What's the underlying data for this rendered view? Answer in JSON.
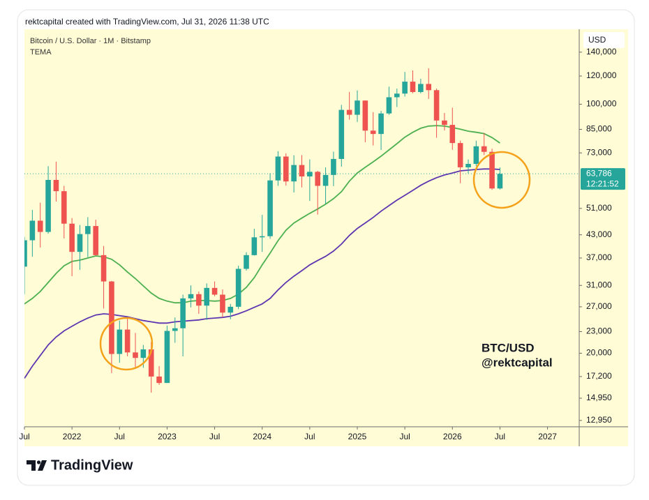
{
  "chart_data": {
    "type": "candlestick",
    "caption": "rektcapital created with TradingView.com, Jul 31, 2026 11:38 UTC",
    "title": "Bitcoin / U.S. Dollar · 1M · Bitstamp",
    "indicator": "TEMA",
    "currency": "USD",
    "annotations": [
      "BTC/USD",
      "@rektcapital"
    ],
    "branding": "TradingView",
    "log_scale": true,
    "grid": false,
    "up_color": "#26a69a",
    "down_color": "#ef5350",
    "x": [
      "2021-07",
      "2021-08",
      "2021-09",
      "2021-10",
      "2021-11",
      "2021-12",
      "2022-01",
      "2022-02",
      "2022-03",
      "2022-04",
      "2022-05",
      "2022-06",
      "2022-07",
      "2022-08",
      "2022-09",
      "2022-10",
      "2022-11",
      "2022-12",
      "2023-01",
      "2023-02",
      "2023-03",
      "2023-04",
      "2023-05",
      "2023-06",
      "2023-07",
      "2023-08",
      "2023-09",
      "2023-10",
      "2023-11",
      "2023-12",
      "2024-01",
      "2024-02",
      "2024-03",
      "2024-04",
      "2024-05",
      "2024-06",
      "2024-07",
      "2024-08",
      "2024-09",
      "2024-10",
      "2024-11",
      "2024-12",
      "2025-01",
      "2025-02",
      "2025-03",
      "2025-04",
      "2025-05",
      "2025-06",
      "2025-07",
      "2025-08",
      "2025-09",
      "2025-10",
      "2025-11",
      "2025-12",
      "2026-01",
      "2026-02",
      "2026-03",
      "2026-04",
      "2026-05",
      "2026-06",
      "2026-07"
    ],
    "open": [
      35000,
      41500,
      47100,
      43800,
      61300,
      57000,
      46200,
      38500,
      43200,
      45500,
      37700,
      31800,
      19900,
      23300,
      20100,
      19400,
      20500,
      17200,
      16500,
      23100,
      23500,
      28500,
      29300,
      27200,
      30500,
      29200,
      26000,
      27000,
      34500,
      37700,
      42300,
      42600,
      61100,
      71300,
      60700,
      67500,
      62700,
      64600,
      59000,
      63300,
      70200,
      96400,
      93400,
      102400,
      84300,
      82500,
      94200,
      104600,
      107100,
      115700,
      108200,
      114000,
      109500,
      90000,
      87500,
      77800,
      66500,
      68000,
      76200,
      73500,
      58000
    ],
    "high": [
      42400,
      50500,
      52900,
      67000,
      69000,
      59000,
      47900,
      45800,
      48200,
      47400,
      40000,
      31900,
      24700,
      25200,
      22800,
      21100,
      21500,
      18400,
      23900,
      25200,
      29200,
      31000,
      29800,
      31400,
      31800,
      30200,
      27500,
      35200,
      38400,
      44700,
      48900,
      64000,
      73800,
      72800,
      71900,
      72000,
      70000,
      65000,
      66500,
      73600,
      99600,
      108300,
      109300,
      102500,
      95000,
      95800,
      112000,
      110600,
      123200,
      124400,
      117900,
      126200,
      110600,
      94500,
      97800,
      79000,
      70000,
      79000,
      83000,
      75000,
      66500
    ],
    "low": [
      29300,
      37300,
      39600,
      43300,
      53300,
      42000,
      32900,
      34300,
      37200,
      37600,
      26700,
      17600,
      18800,
      19600,
      18200,
      18200,
      15500,
      16300,
      16500,
      21400,
      19600,
      26900,
      25800,
      24800,
      28900,
      25200,
      24900,
      26600,
      34100,
      37600,
      38500,
      41900,
      59000,
      59100,
      56500,
      58400,
      53500,
      49000,
      52500,
      58900,
      66800,
      90500,
      89200,
      78200,
      76600,
      74400,
      93400,
      98200,
      105100,
      107300,
      107300,
      103500,
      80500,
      84400,
      74500,
      60000,
      64000,
      67000,
      72000,
      57500,
      57600
    ],
    "close": [
      41500,
      47100,
      43800,
      61300,
      57000,
      46200,
      38500,
      43200,
      45500,
      37700,
      31800,
      19900,
      23300,
      20100,
      19400,
      20500,
      17200,
      16500,
      23100,
      23500,
      28500,
      29300,
      27200,
      30500,
      29200,
      26000,
      27000,
      34500,
      37700,
      42300,
      42600,
      61100,
      71300,
      60700,
      67500,
      62700,
      64600,
      59000,
      63300,
      70200,
      96400,
      93400,
      102400,
      84300,
      82500,
      94200,
      104600,
      107100,
      115700,
      108200,
      114000,
      109500,
      90000,
      87500,
      77800,
      66500,
      68000,
      76200,
      73500,
      58000,
      63786
    ],
    "indicators": [
      {
        "color": "#4caf50",
        "values": [
          27500,
          28500,
          29800,
          31600,
          33500,
          35200,
          36200,
          36500,
          37000,
          37500,
          37300,
          36700,
          35400,
          33800,
          32400,
          30900,
          29500,
          28500,
          28000,
          27700,
          27700,
          28000,
          28100,
          28100,
          28000,
          28100,
          28500,
          29300,
          30600,
          32600,
          35400,
          38200,
          41400,
          44300,
          46400,
          47900,
          49400,
          50800,
          52400,
          54300,
          56800,
          60800,
          64100,
          66500,
          68900,
          71500,
          74400,
          77500,
          80800,
          83400,
          85600,
          86800,
          87100,
          86800,
          86000,
          85100,
          84000,
          83400,
          82700,
          80600,
          77800
        ]
      },
      {
        "color": "#5e35b1",
        "values": [
          17000,
          18400,
          19700,
          21100,
          22200,
          23100,
          23800,
          24500,
          25100,
          25600,
          25800,
          25700,
          25500,
          25300,
          25000,
          24700,
          24500,
          24300,
          24300,
          24500,
          24600,
          24700,
          24800,
          25000,
          25100,
          25200,
          25400,
          25800,
          26300,
          26900,
          27500,
          28500,
          30100,
          31600,
          32900,
          34100,
          35400,
          36400,
          37400,
          38700,
          40500,
          42800,
          44800,
          46400,
          48100,
          50100,
          51900,
          53800,
          55500,
          57300,
          59200,
          60800,
          62200,
          63300,
          64100,
          65000,
          65300,
          65600,
          65800,
          65800,
          65600
        ]
      }
    ],
    "last_price": {
      "value": 63786,
      "label": "63,786"
    },
    "countdown": "12:21:52",
    "xlim": [
      "2021-07",
      "2027-05"
    ],
    "xticks": [
      {
        "value": "2021-07",
        "label": "Jul"
      },
      {
        "value": "2022-01",
        "label": "2022"
      },
      {
        "value": "2022-07",
        "label": "Jul"
      },
      {
        "value": "2023-01",
        "label": "2023"
      },
      {
        "value": "2023-07",
        "label": "Jul"
      },
      {
        "value": "2024-01",
        "label": "2024"
      },
      {
        "value": "2024-07",
        "label": "Jul"
      },
      {
        "value": "2025-01",
        "label": "2025"
      },
      {
        "value": "2025-07",
        "label": "Jul"
      },
      {
        "value": "2026-01",
        "label": "2026"
      },
      {
        "value": "2026-07",
        "label": "Jul"
      },
      {
        "value": "2027-01",
        "label": "2027"
      }
    ],
    "ylim": [
      12430,
      162300
    ],
    "yticks": [
      {
        "value": 12950,
        "label": "12,950"
      },
      {
        "value": 14950,
        "label": "14,950"
      },
      {
        "value": 17200,
        "label": "17,200"
      },
      {
        "value": 20000,
        "label": "20,000"
      },
      {
        "value": 23000,
        "label": "23,000"
      },
      {
        "value": 27000,
        "label": "27,000"
      },
      {
        "value": 31000,
        "label": "31,000"
      },
      {
        "value": 37000,
        "label": "37,000"
      },
      {
        "value": 43000,
        "label": "43,000"
      },
      {
        "value": 51000,
        "label": "51,000"
      },
      {
        "value": 73000,
        "label": "73,000"
      },
      {
        "value": 85000,
        "label": "85,000"
      },
      {
        "value": 100000,
        "label": "100,000"
      },
      {
        "value": 120000,
        "label": "120,000"
      },
      {
        "value": 140000,
        "label": "140,000"
      }
    ]
  }
}
